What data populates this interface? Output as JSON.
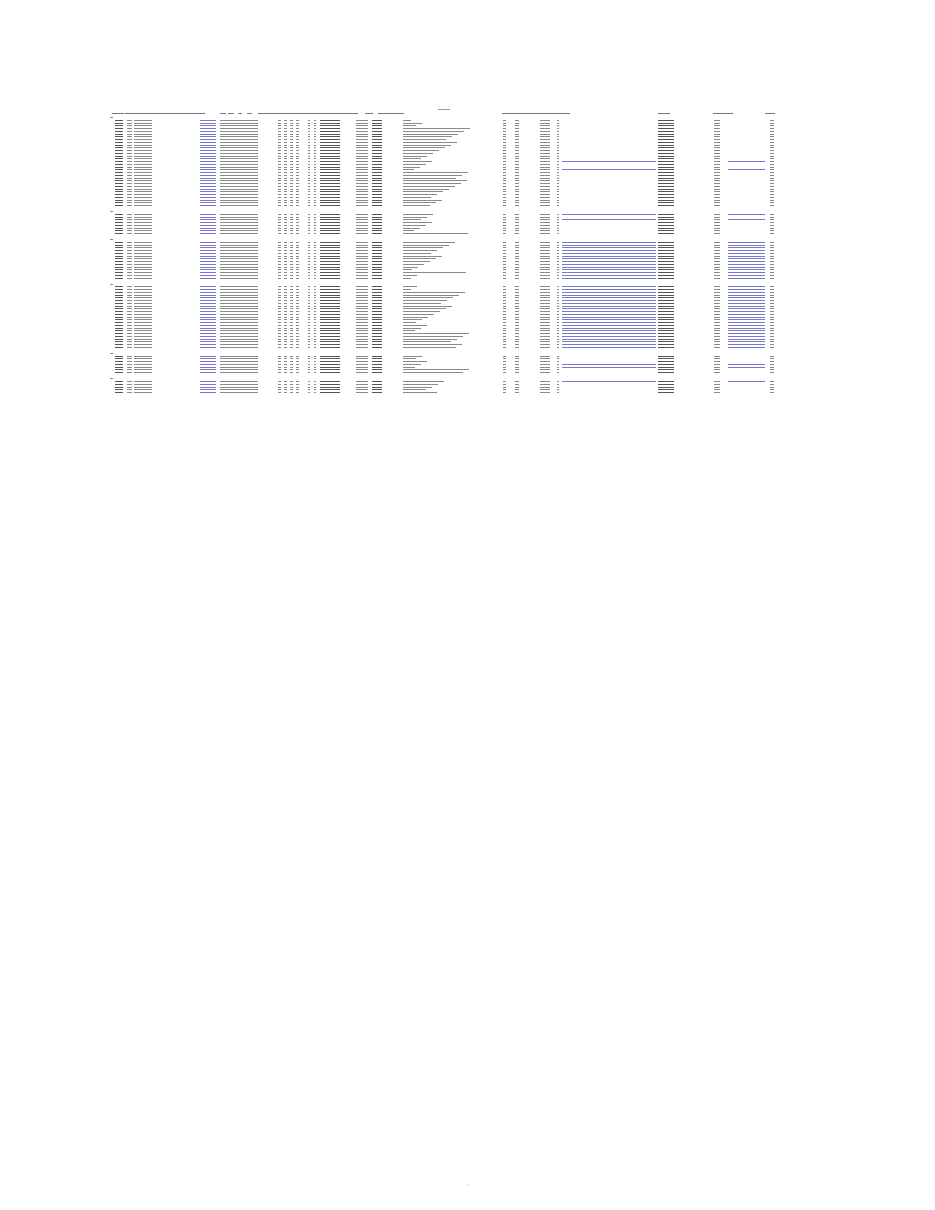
{
  "page": {
    "page_number": "1"
  },
  "table": {
    "colors": {
      "text": "#555555",
      "link": "#3333cc",
      "grid": "#8a8a8a"
    },
    "groups": [
      {
        "rows": 32,
        "link_rows": [
          15,
          18
        ]
      },
      {
        "rows": 8,
        "link_rows": [
          0,
          2
        ]
      },
      {
        "rows": 14,
        "link_rows": [
          0,
          1,
          2,
          3,
          4,
          5,
          6,
          7,
          8,
          9,
          10,
          11,
          12,
          13
        ]
      },
      {
        "rows": 23,
        "link_rows": [
          0,
          1,
          2,
          3,
          4,
          5,
          6,
          7,
          8,
          9,
          10,
          11,
          12,
          13,
          14,
          15,
          16,
          17,
          18,
          19,
          20,
          21,
          22
        ]
      },
      {
        "rows": 7,
        "link_rows": [
          3,
          4
        ]
      },
      {
        "rows": 5,
        "link_rows": [
          0
        ]
      }
    ]
  }
}
